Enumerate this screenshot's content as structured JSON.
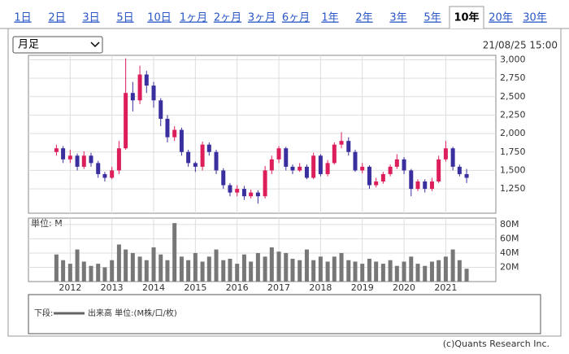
{
  "tabs": [
    "1日",
    "2日",
    "3日",
    "5日",
    "10日",
    "1ヶ月",
    "2ヶ月",
    "3ヶ月",
    "6ヶ月",
    "1年",
    "2年",
    "3年",
    "5年",
    "10年",
    "20年",
    "30年"
  ],
  "active_tab": 13,
  "select": "月足",
  "timestamp": "21/08/25 15:00",
  "legend": {
    "label": "下段:",
    "text": "出来高 単位:(M株/口/枚)",
    "color": "#666666"
  },
  "copyright": "(c)Quants Research Inc.",
  "chart_data": [
    {
      "type": "candlestick",
      "up_color": "#dc1e5a",
      "down_color": "#3a2f9e",
      "grid": true,
      "xlim": [
        2011.0,
        2022.2
      ],
      "xticks": [
        2012,
        2013,
        2014,
        2015,
        2016,
        2017,
        2018,
        2019,
        2020,
        2021
      ],
      "ylim": [
        920,
        3060
      ],
      "yticks": [
        {
          "value": 1250,
          "label": "1,250"
        },
        {
          "value": 1500,
          "label": "1,500"
        },
        {
          "value": 1750,
          "label": "1,750"
        },
        {
          "value": 2000,
          "label": "2,000"
        },
        {
          "value": 2250,
          "label": "2,250"
        },
        {
          "value": 2500,
          "label": "2,500"
        },
        {
          "value": 2750,
          "label": "2,750"
        },
        {
          "value": 3000,
          "label": "3,000"
        }
      ],
      "x": [
        2011.67,
        2011.83,
        2012.0,
        2012.17,
        2012.33,
        2012.5,
        2012.67,
        2012.83,
        2013.0,
        2013.17,
        2013.33,
        2013.5,
        2013.67,
        2013.83,
        2014.0,
        2014.17,
        2014.33,
        2014.5,
        2014.67,
        2014.83,
        2015.0,
        2015.17,
        2015.33,
        2015.5,
        2015.67,
        2015.83,
        2016.0,
        2016.17,
        2016.33,
        2016.5,
        2016.67,
        2016.83,
        2017.0,
        2017.17,
        2017.33,
        2017.5,
        2017.67,
        2017.83,
        2018.0,
        2018.17,
        2018.33,
        2018.5,
        2018.67,
        2018.83,
        2019.0,
        2019.17,
        2019.33,
        2019.5,
        2019.67,
        2019.83,
        2020.0,
        2020.17,
        2020.33,
        2020.5,
        2020.67,
        2020.83,
        2021.0,
        2021.17,
        2021.33,
        2021.5
      ],
      "open": [
        1750,
        1800,
        1650,
        1700,
        1550,
        1700,
        1600,
        1450,
        1400,
        1500,
        1800,
        2550,
        2450,
        2800,
        2650,
        2450,
        2200,
        1950,
        2050,
        1750,
        1600,
        1550,
        1850,
        1750,
        1500,
        1300,
        1200,
        1250,
        1150,
        1200,
        1150,
        1500,
        1650,
        1800,
        1550,
        1500,
        1550,
        1400,
        1700,
        1450,
        1600,
        1850,
        1900,
        1750,
        1500,
        1550,
        1300,
        1350,
        1450,
        1550,
        1650,
        1500,
        1250,
        1350,
        1250,
        1350,
        1650,
        1800,
        1550,
        1450
      ],
      "high": [
        1850,
        1830,
        1780,
        1730,
        1760,
        1740,
        1630,
        1480,
        1550,
        1900,
        3020,
        2700,
        2920,
        2850,
        2700,
        2480,
        2250,
        2100,
        2080,
        1780,
        1620,
        1890,
        1880,
        1780,
        1530,
        1330,
        1300,
        1290,
        1240,
        1230,
        1560,
        1700,
        1830,
        1820,
        1580,
        1600,
        1580,
        1740,
        1720,
        1640,
        1880,
        2020,
        1950,
        1780,
        1600,
        1570,
        1400,
        1480,
        1580,
        1720,
        1680,
        1520,
        1380,
        1380,
        1400,
        1700,
        1900,
        1820,
        1580,
        1520
      ],
      "low": [
        1700,
        1600,
        1600,
        1500,
        1520,
        1550,
        1400,
        1350,
        1380,
        1450,
        1780,
        2300,
        2400,
        2550,
        2350,
        2100,
        1880,
        1900,
        1700,
        1550,
        1480,
        1500,
        1700,
        1450,
        1250,
        1150,
        1150,
        1100,
        1120,
        1050,
        1120,
        1450,
        1600,
        1500,
        1450,
        1480,
        1380,
        1380,
        1420,
        1420,
        1580,
        1800,
        1700,
        1480,
        1460,
        1250,
        1270,
        1320,
        1420,
        1520,
        1450,
        1150,
        1220,
        1200,
        1220,
        1330,
        1620,
        1500,
        1420,
        1330
      ],
      "close": [
        1800,
        1650,
        1700,
        1550,
        1700,
        1600,
        1450,
        1400,
        1500,
        1800,
        2550,
        2450,
        2800,
        2650,
        2450,
        2200,
        1950,
        2050,
        1750,
        1600,
        1550,
        1850,
        1750,
        1500,
        1300,
        1200,
        1250,
        1150,
        1200,
        1150,
        1500,
        1650,
        1800,
        1550,
        1500,
        1550,
        1400,
        1700,
        1450,
        1600,
        1850,
        1900,
        1750,
        1500,
        1550,
        1300,
        1350,
        1450,
        1550,
        1650,
        1500,
        1250,
        1350,
        1250,
        1350,
        1650,
        1800,
        1550,
        1450,
        1400
      ]
    },
    {
      "type": "bar",
      "unit_label": "単位: M",
      "color": "#777777",
      "grid": true,
      "xlim": [
        2011.0,
        2022.2
      ],
      "xticks": [
        2012,
        2013,
        2014,
        2015,
        2016,
        2017,
        2018,
        2019,
        2020,
        2021
      ],
      "ylim": [
        0,
        89
      ],
      "yticks": [
        {
          "value": 20,
          "label": "20M"
        },
        {
          "value": 40,
          "label": "40M"
        },
        {
          "value": 60,
          "label": "60M"
        },
        {
          "value": 80,
          "label": "80M"
        }
      ],
      "x": [
        2011.67,
        2011.83,
        2012.0,
        2012.17,
        2012.33,
        2012.5,
        2012.67,
        2012.83,
        2013.0,
        2013.17,
        2013.33,
        2013.5,
        2013.67,
        2013.83,
        2014.0,
        2014.17,
        2014.33,
        2014.5,
        2014.67,
        2014.83,
        2015.0,
        2015.17,
        2015.33,
        2015.5,
        2015.67,
        2015.83,
        2016.0,
        2016.17,
        2016.33,
        2016.5,
        2016.67,
        2016.83,
        2017.0,
        2017.17,
        2017.33,
        2017.5,
        2017.67,
        2017.83,
        2018.0,
        2018.17,
        2018.33,
        2018.5,
        2018.67,
        2018.83,
        2019.0,
        2019.17,
        2019.33,
        2019.5,
        2019.67,
        2019.83,
        2020.0,
        2020.17,
        2020.33,
        2020.5,
        2020.67,
        2020.83,
        2021.0,
        2021.17,
        2021.33,
        2021.5
      ],
      "values": [
        38,
        30,
        25,
        45,
        28,
        22,
        25,
        20,
        30,
        52,
        45,
        40,
        35,
        30,
        48,
        38,
        30,
        82,
        35,
        30,
        40,
        28,
        35,
        45,
        30,
        32,
        25,
        38,
        28,
        40,
        35,
        48,
        42,
        40,
        32,
        30,
        45,
        30,
        35,
        28,
        35,
        40,
        30,
        28,
        25,
        32,
        28,
        25,
        30,
        22,
        28,
        35,
        25,
        22,
        28,
        30,
        35,
        45,
        30,
        18
      ]
    }
  ]
}
